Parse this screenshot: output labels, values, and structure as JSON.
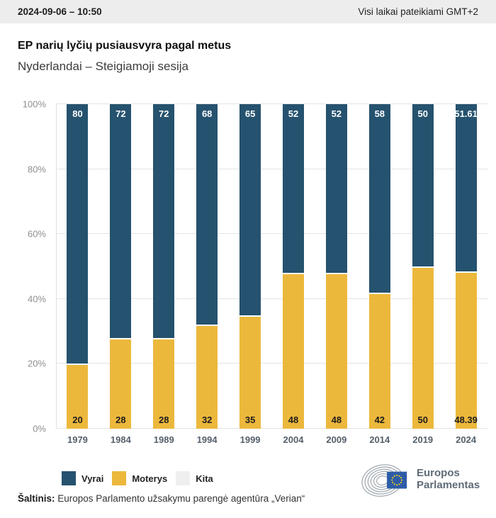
{
  "header": {
    "timestamp": "2024-09-06 – 10:50",
    "timezone_note": "Visi laikai pateikiami GMT+2"
  },
  "chart_data": {
    "type": "bar",
    "stacked": true,
    "title": "EP narių lyčių pusiausvyra pagal metus",
    "subtitle": "Nyderlandai – Steigiamoji sesija",
    "categories": [
      "1979",
      "1984",
      "1989",
      "1994",
      "1999",
      "2004",
      "2009",
      "2014",
      "2019",
      "2024"
    ],
    "series": [
      {
        "name": "Vyrai",
        "color": "#25526E",
        "values": [
          80,
          72,
          72,
          68,
          65,
          52,
          52,
          58,
          50,
          51.61
        ],
        "labels": [
          "80",
          "72",
          "72",
          "68",
          "65",
          "52",
          "52",
          "58",
          "50",
          "51.61"
        ],
        "label_color": "#FFFFFF"
      },
      {
        "name": "Moterys",
        "color": "#ECB83C",
        "values": [
          20,
          28,
          28,
          32,
          35,
          48,
          48,
          42,
          50,
          48.39
        ],
        "labels": [
          "20",
          "28",
          "28",
          "32",
          "35",
          "48",
          "48",
          "42",
          "50",
          "48.39"
        ],
        "label_color": "#1C1C1C"
      },
      {
        "name": "Kita",
        "color": "#EFEFEF",
        "values": [
          0,
          0,
          0,
          0,
          0,
          0,
          0,
          0,
          0,
          0
        ],
        "labels": [
          "",
          "",
          "",
          "",
          "",
          "",
          "",
          "",
          "",
          ""
        ],
        "label_color": "#1C1C1C"
      }
    ],
    "xlabel": "",
    "ylabel": "",
    "ylim": [
      0,
      100
    ],
    "yticks": [
      "0%",
      "20%",
      "40%",
      "60%",
      "80%",
      "100%"
    ],
    "grid": true,
    "legend_position": "bottom"
  },
  "footer": {
    "source_label": "Šaltinis:",
    "source_text": " Europos Parlamento užsakymu parengė agentūra „Verian“",
    "logo_line1": "Europos",
    "logo_line2": "Parlamentas"
  }
}
